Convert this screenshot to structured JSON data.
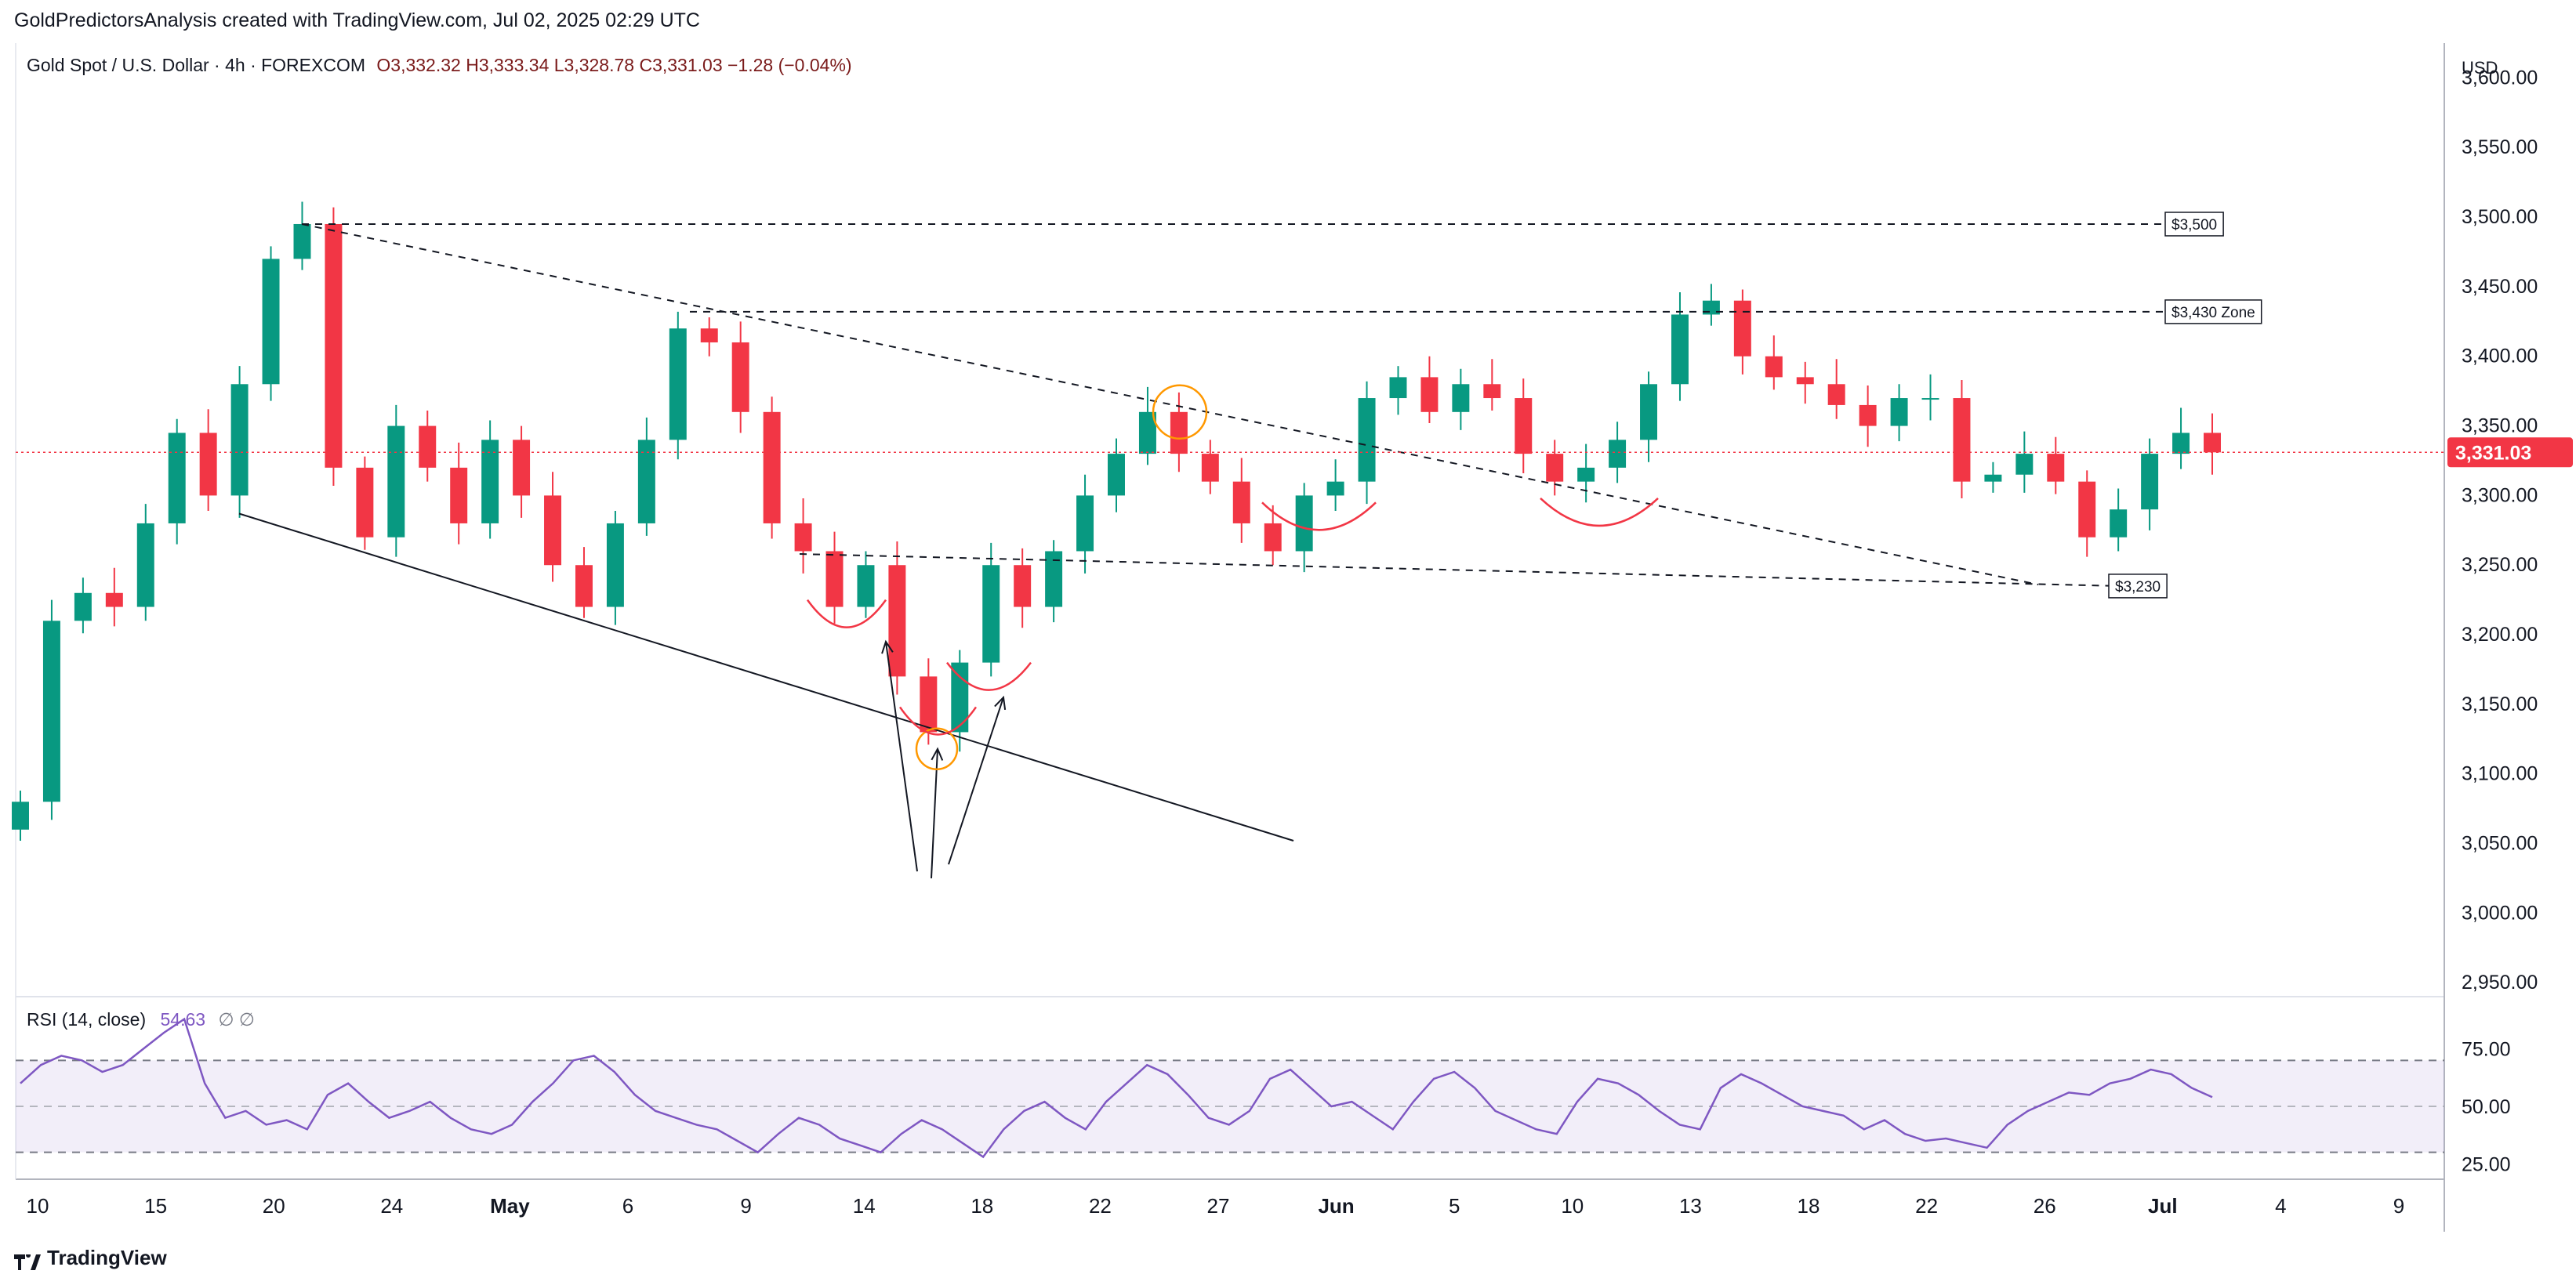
{
  "header": {
    "credit": "GoldPredictorsAnalysis created with TradingView.com, Jul 02, 2025 02:29 UTC"
  },
  "legend": {
    "symbol": "Gold Spot / U.S. Dollar · 4h · FOREXCOM",
    "open": "O3,332.32",
    "high": "H3,333.34",
    "low": "L3,328.78",
    "close": "C3,331.03",
    "change": "−1.28 (−0.04%)"
  },
  "rsi_legend": {
    "label": "RSI (14, close)",
    "value": "54.63",
    "placeholder": "∅   ∅"
  },
  "currency": "USD",
  "last_price": {
    "label": "3,331.03",
    "value": 3331.03
  },
  "footer": {
    "brand": "TradingView"
  },
  "colors": {
    "up": "#089981",
    "down": "#f23645",
    "line": "#131722",
    "rsi": "#7e57c2",
    "accent": "#ff9800"
  },
  "chart_data": [
    {
      "type": "candlestick",
      "title": "Gold Spot / U.S. Dollar · 4h · FOREXCOM",
      "ylim": [
        2940,
        3625
      ],
      "price_ticks": [
        "3,600.00",
        "3,550.00",
        "3,500.00",
        "3,450.00",
        "3,400.00",
        "3,350.00",
        "3,300.00",
        "3,250.00",
        "3,200.00",
        "3,150.00",
        "3,100.00",
        "3,050.00",
        "3,000.00",
        "2,950.00"
      ],
      "date_ticks": [
        "10",
        "15",
        "20",
        "24",
        "May",
        "6",
        "9",
        "14",
        "18",
        "22",
        "27",
        "Jun",
        "5",
        "10",
        "13",
        "18",
        "22",
        "26",
        "Jul",
        "4",
        "9"
      ],
      "approx_closes": [
        3080,
        3210,
        3230,
        3220,
        3280,
        3345,
        3300,
        3380,
        3470,
        3495,
        3320,
        3270,
        3350,
        3320,
        3280,
        3340,
        3300,
        3250,
        3220,
        3280,
        3340,
        3420,
        3410,
        3360,
        3280,
        3260,
        3220,
        3250,
        3170,
        3130,
        3180,
        3250,
        3220,
        3260,
        3300,
        3330,
        3360,
        3330,
        3310,
        3280,
        3260,
        3300,
        3310,
        3370,
        3385,
        3360,
        3380,
        3370,
        3330,
        3310,
        3320,
        3340,
        3380,
        3430,
        3440,
        3400,
        3385,
        3380,
        3365,
        3350,
        3370,
        3370,
        3310,
        3315,
        3330,
        3310,
        3270,
        3290,
        3330,
        3345,
        3331
      ],
      "annotations": [
        "$3,500",
        "$3,430 Zone",
        "$3,230"
      ],
      "levels": {
        "$3,500": 3495,
        "$3,430 Zone": 3432,
        "$3,230": 3235
      }
    },
    {
      "type": "line",
      "title": "RSI (14, close)",
      "ylim": [
        20,
        95
      ],
      "ticks": [
        "75.00",
        "50.00",
        "25.00"
      ],
      "bands": [
        30,
        50,
        70
      ],
      "values": [
        60,
        68,
        72,
        70,
        65,
        68,
        75,
        82,
        88,
        60,
        45,
        48,
        42,
        44,
        40,
        55,
        60,
        52,
        45,
        48,
        52,
        45,
        40,
        38,
        42,
        52,
        60,
        70,
        72,
        65,
        55,
        48,
        45,
        42,
        40,
        35,
        30,
        38,
        45,
        42,
        36,
        33,
        30,
        38,
        44,
        40,
        34,
        28,
        40,
        48,
        52,
        45,
        40,
        52,
        60,
        68,
        64,
        55,
        45,
        42,
        48,
        62,
        66,
        58,
        50,
        52,
        46,
        40,
        52,
        62,
        65,
        58,
        48,
        44,
        40,
        38,
        52,
        62,
        60,
        55,
        48,
        42,
        40,
        58,
        64,
        60,
        55,
        50,
        48,
        46,
        40,
        44,
        38,
        35,
        36,
        34,
        32,
        42,
        48,
        52,
        56,
        55,
        60,
        62,
        66,
        64,
        58,
        54
      ]
    }
  ]
}
